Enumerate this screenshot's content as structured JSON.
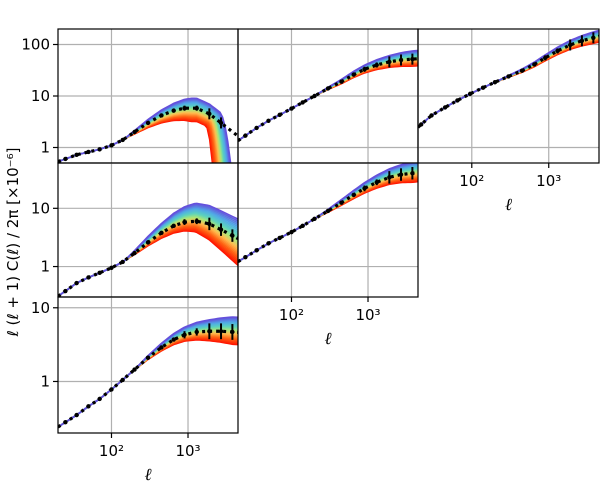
{
  "figure": {
    "ylabel": "ℓ (ℓ + 1) C(ℓ) / 2π  [×10⁻⁶]",
    "xlabel": "ℓ"
  },
  "chart_data": {
    "type": "line",
    "layout": "lower-triangular grid of 6 log-log panels (3 rows x 3 columns)",
    "xscale": "log",
    "yscale": "log",
    "xlim": [
      20,
      4500
    ],
    "grid": true,
    "x_ticks": [
      {
        "value": 100,
        "label": "10²"
      },
      {
        "value": 1000,
        "label": "10³"
      }
    ],
    "series_colormap": "rainbow (blue to red), many model curves per panel",
    "panels": [
      {
        "id": "row1-col1",
        "ylim": [
          0.5,
          200
        ],
        "y_ticks": [
          {
            "value": 1,
            "label": "1"
          },
          {
            "value": 10,
            "label": "10"
          },
          {
            "value": 100,
            "label": "100"
          }
        ],
        "data_points": [
          {
            "l": 25,
            "v": 0.6
          },
          {
            "l": 35,
            "v": 0.72
          },
          {
            "l": 50,
            "v": 0.82
          },
          {
            "l": 70,
            "v": 0.92
          },
          {
            "l": 100,
            "v": 1.1
          },
          {
            "l": 140,
            "v": 1.4
          },
          {
            "l": 200,
            "v": 2.0
          },
          {
            "l": 300,
            "v": 3.0
          },
          {
            "l": 450,
            "v": 4.2
          },
          {
            "l": 650,
            "v": 5.2
          },
          {
            "l": 900,
            "v": 5.8
          },
          {
            "l": 1300,
            "v": 5.8
          },
          {
            "l": 1900,
            "v": 4.5
          },
          {
            "l": 2700,
            "v": 3.0
          }
        ],
        "model_range": {
          "top_peak": 9,
          "bottom_peak": 3.2,
          "peak_l": 1100,
          "dropoff": true
        }
      },
      {
        "id": "row1-col2",
        "ylim": [
          0.5,
          200
        ],
        "data_points": [
          {
            "l": 25,
            "v": 1.7
          },
          {
            "l": 35,
            "v": 2.4
          },
          {
            "l": 50,
            "v": 3.3
          },
          {
            "l": 70,
            "v": 4.3
          },
          {
            "l": 100,
            "v": 5.7
          },
          {
            "l": 140,
            "v": 7.5
          },
          {
            "l": 200,
            "v": 10
          },
          {
            "l": 300,
            "v": 14
          },
          {
            "l": 450,
            "v": 19
          },
          {
            "l": 650,
            "v": 26
          },
          {
            "l": 900,
            "v": 33
          },
          {
            "l": 1300,
            "v": 40
          },
          {
            "l": 1900,
            "v": 46
          },
          {
            "l": 2700,
            "v": 50
          },
          {
            "l": 3800,
            "v": 52
          }
        ],
        "model_range": {
          "top_end": 75,
          "bottom_end": 38
        }
      },
      {
        "id": "row1-col3",
        "ylim": [
          0.5,
          200
        ],
        "data_points": [
          {
            "l": 22,
            "v": 2.8
          },
          {
            "l": 30,
            "v": 4.2
          },
          {
            "l": 45,
            "v": 6.0
          },
          {
            "l": 65,
            "v": 8.2
          },
          {
            "l": 95,
            "v": 11
          },
          {
            "l": 140,
            "v": 14.5
          },
          {
            "l": 200,
            "v": 18.5
          },
          {
            "l": 300,
            "v": 24
          },
          {
            "l": 450,
            "v": 31
          },
          {
            "l": 650,
            "v": 41
          },
          {
            "l": 900,
            "v": 55
          },
          {
            "l": 1300,
            "v": 75
          },
          {
            "l": 1900,
            "v": 98
          },
          {
            "l": 2700,
            "v": 118
          },
          {
            "l": 3800,
            "v": 135
          }
        ],
        "model_range": {
          "top_end": 175,
          "bottom_end": 105
        }
      },
      {
        "id": "row2-col1",
        "ylim": [
          0.3,
          60
        ],
        "y_ticks": [
          {
            "value": 1,
            "label": "1"
          },
          {
            "value": 10,
            "label": "10"
          }
        ],
        "data_points": [
          {
            "l": 25,
            "v": 0.38
          },
          {
            "l": 35,
            "v": 0.52
          },
          {
            "l": 50,
            "v": 0.65
          },
          {
            "l": 70,
            "v": 0.78
          },
          {
            "l": 100,
            "v": 0.95
          },
          {
            "l": 140,
            "v": 1.2
          },
          {
            "l": 200,
            "v": 1.7
          },
          {
            "l": 300,
            "v": 2.6
          },
          {
            "l": 450,
            "v": 3.8
          },
          {
            "l": 650,
            "v": 5.0
          },
          {
            "l": 900,
            "v": 5.8
          },
          {
            "l": 1300,
            "v": 6.0
          },
          {
            "l": 1900,
            "v": 5.4
          },
          {
            "l": 2700,
            "v": 4.3
          },
          {
            "l": 3800,
            "v": 3.4
          }
        ],
        "model_range": {
          "top_peak": 12,
          "bottom_peak": 4.0,
          "peak_l": 1200,
          "dropoff": false
        }
      },
      {
        "id": "row2-col2",
        "ylim": [
          0.3,
          60
        ],
        "data_points": [
          {
            "l": 25,
            "v": 1.45
          },
          {
            "l": 35,
            "v": 1.9
          },
          {
            "l": 50,
            "v": 2.5
          },
          {
            "l": 70,
            "v": 3.1
          },
          {
            "l": 100,
            "v": 3.9
          },
          {
            "l": 140,
            "v": 5.0
          },
          {
            "l": 200,
            "v": 6.6
          },
          {
            "l": 300,
            "v": 9.0
          },
          {
            "l": 450,
            "v": 12.5
          },
          {
            "l": 650,
            "v": 17
          },
          {
            "l": 900,
            "v": 22
          },
          {
            "l": 1300,
            "v": 28
          },
          {
            "l": 1900,
            "v": 34
          },
          {
            "l": 2700,
            "v": 38
          },
          {
            "l": 3800,
            "v": 40
          }
        ],
        "model_range": {
          "top_end": 62,
          "bottom_end": 28
        }
      },
      {
        "id": "row3-col1",
        "ylim": [
          0.2,
          14
        ],
        "y_ticks": [
          {
            "value": 1,
            "label": "1"
          },
          {
            "value": 10,
            "label": "10"
          }
        ],
        "data_points": [
          {
            "l": 25,
            "v": 0.28
          },
          {
            "l": 35,
            "v": 0.35
          },
          {
            "l": 50,
            "v": 0.46
          },
          {
            "l": 70,
            "v": 0.58
          },
          {
            "l": 100,
            "v": 0.78
          },
          {
            "l": 140,
            "v": 1.05
          },
          {
            "l": 200,
            "v": 1.45
          },
          {
            "l": 300,
            "v": 2.1
          },
          {
            "l": 450,
            "v": 2.9
          },
          {
            "l": 650,
            "v": 3.7
          },
          {
            "l": 900,
            "v": 4.3
          },
          {
            "l": 1300,
            "v": 4.7
          },
          {
            "l": 1900,
            "v": 4.8
          },
          {
            "l": 2700,
            "v": 4.8
          },
          {
            "l": 3800,
            "v": 4.7
          }
        ],
        "model_range": {
          "top_end": 7.5,
          "bottom_end": 3.2
        }
      }
    ]
  }
}
